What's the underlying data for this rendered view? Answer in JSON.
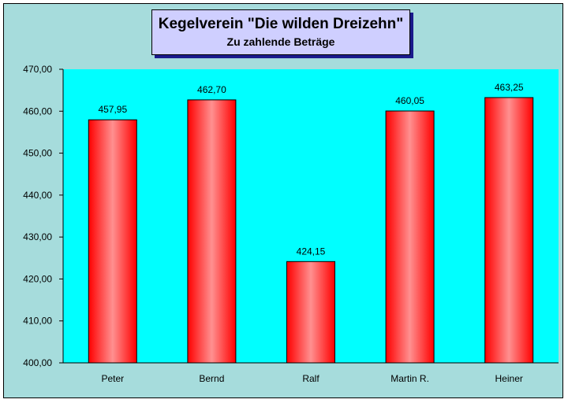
{
  "chart_data": {
    "type": "bar",
    "title": "Kegelverein \"Die wilden Dreizehn\"",
    "subtitle": "Zu zahlende Beträge",
    "categories": [
      "Peter",
      "Bernd",
      "Ralf",
      "Martin R.",
      "Heiner"
    ],
    "values": [
      457.95,
      462.7,
      424.15,
      460.05,
      463.25
    ],
    "value_labels": [
      "457,95",
      "462,70",
      "424,15",
      "460,05",
      "463,25"
    ],
    "ylim": [
      400,
      470
    ],
    "yticks": [
      400,
      410,
      420,
      430,
      440,
      450,
      460,
      470
    ],
    "ytick_labels": [
      "400,00",
      "410,00",
      "420,00",
      "430,00",
      "440,00",
      "450,00",
      "460,00",
      "470,00"
    ],
    "grid": false,
    "legend": "none",
    "colors": {
      "background": "#a6dcdc",
      "plot_area": "#00ffff",
      "bar_edge": "#ff0000",
      "bar_center": "#ff9090",
      "title_box": "#cfcfff",
      "title_shadow": "#1a1a8c"
    }
  }
}
